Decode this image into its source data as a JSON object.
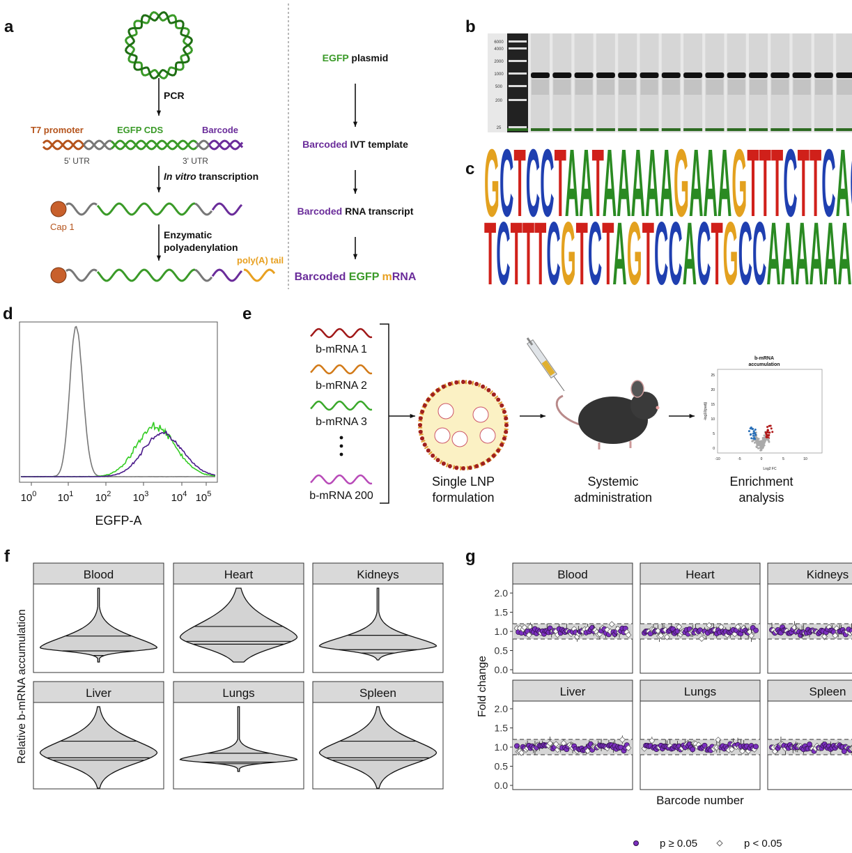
{
  "panel_a": {
    "label": "a",
    "pcr": "PCR",
    "t7": "T7 promoter",
    "cds": "EGFP CDS",
    "barcode": "Barcode",
    "utr5": "5' UTR",
    "utr3": "3' UTR",
    "ivt_italic": "In vitro",
    "ivt": " transcription",
    "cap": "Cap 1",
    "poly1": "Enzymatic",
    "poly2": "polyadenylation",
    "tail": "poly(A) tail",
    "flow": [
      [
        "EGFP",
        " plasmid"
      ],
      [
        "Barcoded",
        " IVT template"
      ],
      [
        "Barcoded",
        " RNA transcript"
      ],
      [
        "Barcoded",
        " EGFP",
        " m",
        "RNA"
      ]
    ]
  },
  "panel_b": {
    "label": "b",
    "ladder": [
      6000,
      4000,
      2000,
      1000,
      500,
      200,
      25
    ]
  },
  "panel_c": {
    "label": "c",
    "rows": [
      "GCTCCTAATAAAAAGAAAGTTTCTTCACA",
      "TCTTTCGTCTAGTCCACTGCCAAAAAAA"
    ]
  },
  "panel_d": {
    "label": "d",
    "tick_base": 10,
    "tick_exponents": [
      0,
      1,
      2,
      3,
      4,
      5
    ],
    "xlabel": "EGFP-A"
  },
  "panel_e": {
    "label": "e",
    "inputs": [
      "b-mRNA 1",
      "b-mRNA 2",
      "b-mRNA 3",
      "b-mRNA 200"
    ],
    "steps": [
      [
        "Single LNP",
        "formulation"
      ],
      [
        "Systemic",
        "administration"
      ],
      [
        "Enrichment",
        "analysis"
      ]
    ],
    "volcano": {
      "title": [
        "b-mRNA",
        "accumulation"
      ],
      "ylabel": "-log10(padj)",
      "xlabel": "Log2 FC",
      "yticks": [
        25,
        20,
        15,
        10,
        5,
        0
      ],
      "xticks": [
        -10,
        -5,
        0,
        5,
        10
      ]
    }
  },
  "panel_f": {
    "label": "f",
    "ylabel": "Relative b-mRNA accumulation",
    "facets": [
      "Blood",
      "Heart",
      "Kidneys",
      "Liver",
      "Lungs",
      "Spleen"
    ]
  },
  "panel_g": {
    "label": "g",
    "facets": [
      "Blood",
      "Heart",
      "Kidneys",
      "Liver",
      "Lungs",
      "Spleen"
    ],
    "yticks": [
      {
        "value": 0,
        "label": "0.0"
      },
      {
        "value": 0.5,
        "label": "0.5"
      },
      {
        "value": 1,
        "label": "1.0"
      },
      {
        "value": 1.5,
        "label": "1.5"
      },
      {
        "value": 2,
        "label": "2.0"
      }
    ],
    "ylabel": "Fold change",
    "xlabel": "Barcode number",
    "legend": [
      "p ≥ 0.05",
      "p < 0.05"
    ]
  }
}
